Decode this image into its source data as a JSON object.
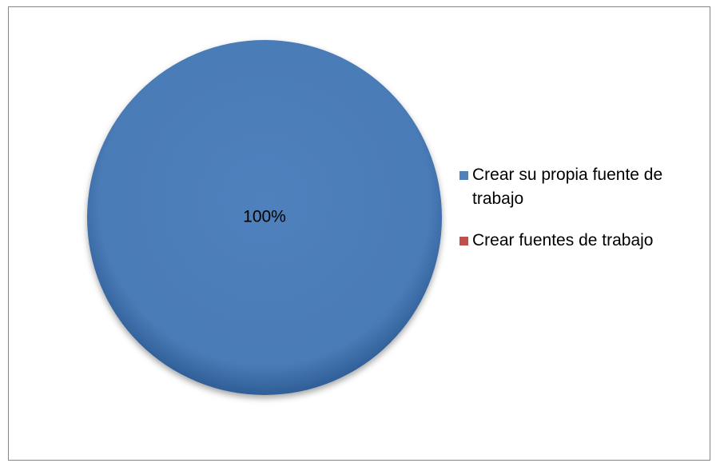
{
  "chart_data": {
    "type": "pie",
    "slices": [
      {
        "label": "Crear su propia fuente de trabajo",
        "value": 100,
        "display": "100%",
        "color": "#4F81BD"
      },
      {
        "label": "Crear fuentes de trabajo",
        "value": 0,
        "display": "",
        "color": "#C0504D"
      }
    ],
    "legend_position": "right"
  }
}
